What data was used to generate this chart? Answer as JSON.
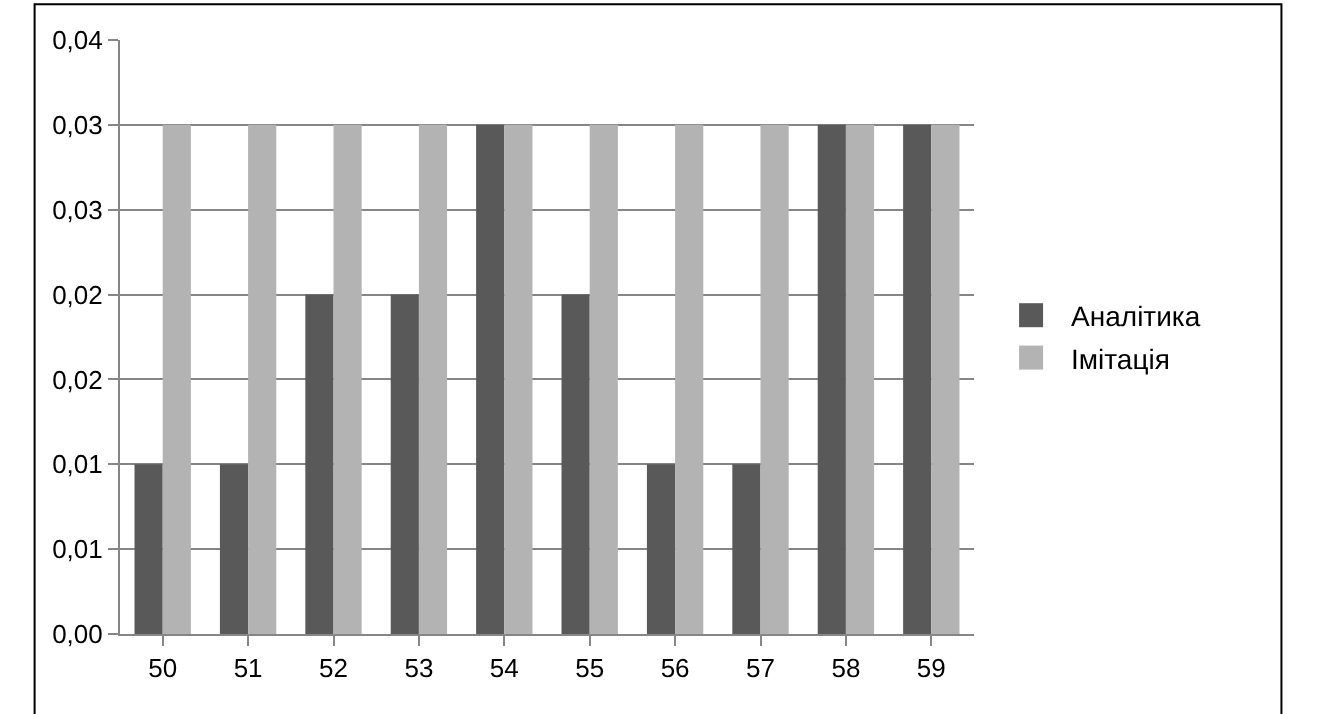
{
  "chart_data": {
    "type": "bar",
    "categories": [
      "50",
      "51",
      "52",
      "53",
      "54",
      "55",
      "56",
      "57",
      "58",
      "59"
    ],
    "series": [
      {
        "name": "Аналітика",
        "color": "#595959",
        "values": [
          0.01,
          0.01,
          0.02,
          0.02,
          0.03,
          0.02,
          0.01,
          0.01,
          0.03,
          0.03
        ]
      },
      {
        "name": "Імітація",
        "color": "#b3b3b3",
        "values": [
          0.03,
          0.03,
          0.03,
          0.03,
          0.03,
          0.03,
          0.03,
          0.03,
          0.03,
          0.03
        ]
      }
    ],
    "ylim": [
      0,
      0.035
    ],
    "yticks": [
      {
        "value": 0,
        "label": "0,00"
      },
      {
        "value": 0.005,
        "label": "0,01"
      },
      {
        "value": 0.01,
        "label": "0,01"
      },
      {
        "value": 0.015,
        "label": "0,02"
      },
      {
        "value": 0.02,
        "label": "0,02"
      },
      {
        "value": 0.025,
        "label": "0,03"
      },
      {
        "value": 0.03,
        "label": "0,03"
      },
      {
        "value": 0.035,
        "label": "0,04"
      }
    ],
    "grid": "y",
    "legend": "right"
  }
}
